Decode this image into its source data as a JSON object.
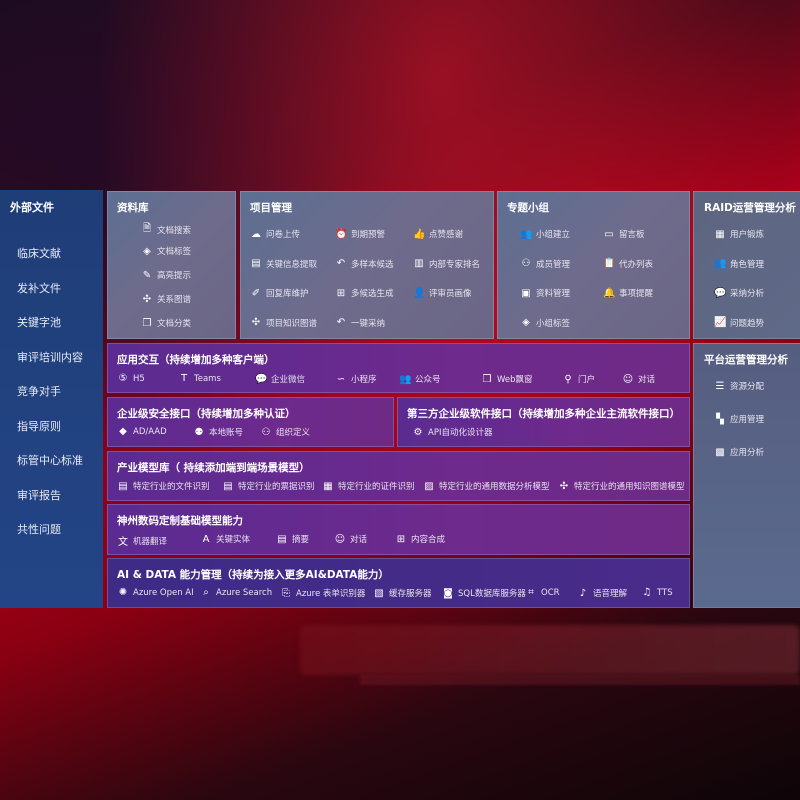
{
  "sidebar": {
    "title": "外部文件",
    "items": [
      "临床文献",
      "发补文件",
      "关键字池",
      "审评培训内容",
      "竞争对手",
      "指导原则",
      "标管中心标准",
      "审评报告",
      "共性问题"
    ]
  },
  "library": {
    "title": "资料库",
    "items": [
      {
        "icon": "document-search-icon",
        "label": "文档搜索"
      },
      {
        "icon": "tag-icon",
        "label": "文档标签"
      },
      {
        "icon": "pen-icon",
        "label": "高亮提示"
      },
      {
        "icon": "graph-icon",
        "label": "关系图谱"
      },
      {
        "icon": "copy-icon",
        "label": "文档分类"
      }
    ]
  },
  "project": {
    "title": "项目管理",
    "items": [
      {
        "icon": "cloud-upload-icon",
        "label": "问卷上传"
      },
      {
        "icon": "alarm-icon",
        "label": "到期预警"
      },
      {
        "icon": "thumbs-up-icon",
        "label": "点赞感谢"
      },
      {
        "icon": "card-icon",
        "label": "关键信息提取"
      },
      {
        "icon": "reply-icon",
        "label": "多样本候选"
      },
      {
        "icon": "ranking-icon",
        "label": "内部专家排名"
      },
      {
        "icon": "edit-icon",
        "label": "回复库维护"
      },
      {
        "icon": "puzzle-icon",
        "label": "多候选生成"
      },
      {
        "icon": "person-icon",
        "label": "评审员画像"
      },
      {
        "icon": "graph-icon",
        "label": "项目知识图谱"
      },
      {
        "icon": "reply-icon",
        "label": "一键采纳"
      }
    ]
  },
  "group": {
    "title": "专题小组",
    "items": [
      {
        "icon": "users-icon",
        "label": "小组建立"
      },
      {
        "icon": "bbs-icon",
        "label": "留言板"
      },
      {
        "icon": "user-add-icon",
        "label": "成员管理"
      },
      {
        "icon": "clipboard-icon",
        "label": "代办列表"
      },
      {
        "icon": "folder-icon",
        "label": "资料管理"
      },
      {
        "icon": "bell-icon",
        "label": "事项提醒"
      },
      {
        "icon": "tag-icon",
        "label": "小组标签"
      }
    ]
  },
  "raid": {
    "title": "RAID运营管理分析",
    "items": [
      {
        "icon": "id-card-icon",
        "label": "用户锻炼"
      },
      {
        "icon": "users-icon",
        "label": "角色管理"
      },
      {
        "icon": "qa-icon",
        "label": "采纳分析"
      },
      {
        "icon": "trend-icon",
        "label": "问题趋势"
      }
    ]
  },
  "platform": {
    "title": "平台运营管理分析",
    "items": [
      {
        "icon": "list-icon",
        "label": "资源分配"
      },
      {
        "icon": "apps-icon",
        "label": "应用管理"
      },
      {
        "icon": "chart-icon",
        "label": "应用分析"
      }
    ]
  },
  "interaction": {
    "title": "应用交互（持续增加多种客户端）",
    "items": [
      {
        "icon": "html5-icon",
        "label": "H5"
      },
      {
        "icon": "teams-icon",
        "label": "Teams"
      },
      {
        "icon": "wechat-icon",
        "label": "企业微信"
      },
      {
        "icon": "miniprogram-icon",
        "label": "小程序"
      },
      {
        "icon": "users-icon",
        "label": "公众号"
      },
      {
        "icon": "window-icon",
        "label": "Web飘窗"
      },
      {
        "icon": "portal-icon",
        "label": "门户"
      },
      {
        "icon": "chat-icon",
        "label": "对话"
      }
    ]
  },
  "security": {
    "title": "企业级安全接口（持续增加多种认证）",
    "items": [
      {
        "icon": "ad-icon",
        "label": "AD/AAD"
      },
      {
        "icon": "user-lock-icon",
        "label": "本地账号"
      },
      {
        "icon": "org-icon",
        "label": "组织定义"
      }
    ]
  },
  "thirdparty": {
    "title": "第三方企业级软件接口（持续增加多种企业主流软件接口）",
    "items": [
      {
        "icon": "gear-icon",
        "label": "API自动化设计器"
      }
    ]
  },
  "industry": {
    "title": "产业模型库（ 持续添加端到端场景模型）",
    "items": [
      {
        "icon": "file-icon",
        "label": "特定行业的文件识别"
      },
      {
        "icon": "receipt-icon",
        "label": "特定行业的票据识别"
      },
      {
        "icon": "id-card-icon",
        "label": "特定行业的证件识别"
      },
      {
        "icon": "image-icon",
        "label": "特定行业的通用数据分析模型"
      },
      {
        "icon": "graph-icon",
        "label": "特定行业的通用知识图谱模型"
      }
    ]
  },
  "foundation": {
    "title": "神州数码定制基础模型能力",
    "items": [
      {
        "icon": "translate-icon",
        "label": "机器翻译"
      },
      {
        "icon": "entity-icon",
        "label": "关键实体"
      },
      {
        "icon": "summary-icon",
        "label": "摘要"
      },
      {
        "icon": "chat-icon",
        "label": "对话"
      },
      {
        "icon": "puzzle-icon",
        "label": "内容合成"
      }
    ]
  },
  "aidata": {
    "title": "AI & DATA 能力管理（持续为接入更多AI&DATA能力）",
    "items": [
      {
        "icon": "openai-icon",
        "label": "Azure Open AI"
      },
      {
        "icon": "search-icon",
        "label": "Azure Search"
      },
      {
        "icon": "form-icon",
        "label": "Azure 表单识别器"
      },
      {
        "icon": "cache-icon",
        "label": "缓存服务器"
      },
      {
        "icon": "database-icon",
        "label": "SQL数据库服务器"
      },
      {
        "icon": "ocr-icon",
        "label": "OCR"
      },
      {
        "icon": "voice-icon",
        "label": "语音理解"
      },
      {
        "icon": "tts-icon",
        "label": "TTS"
      }
    ]
  }
}
